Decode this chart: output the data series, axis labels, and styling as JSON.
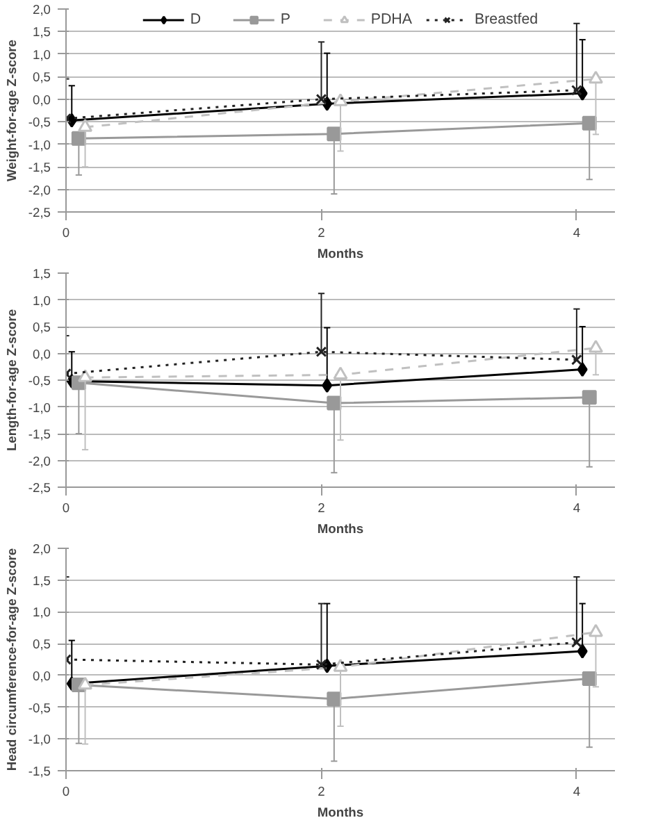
{
  "chart_data": [
    {
      "type": "line",
      "ylabel": "Weight-for-age Z-score",
      "xlabel": "Months",
      "xlim": [
        0,
        4.3
      ],
      "xticks": [
        0,
        2,
        4
      ],
      "ylim": [
        -2.5,
        2.0
      ],
      "yticks": [
        {
          "value": -2.5,
          "label": "-2,5"
        },
        {
          "value": -2.0,
          "label": "-2,0"
        },
        {
          "value": -1.5,
          "label": "-1,5"
        },
        {
          "value": -1.0,
          "label": "-1,0"
        },
        {
          "value": -0.5,
          "label": "-0,5"
        },
        {
          "value": 0,
          "label": "0,0"
        },
        {
          "value": 0.5,
          "label": "0,5"
        },
        {
          "value": 1.0,
          "label": "1,0"
        },
        {
          "value": 1.5,
          "label": "1,5"
        },
        {
          "value": 2.0,
          "label": "2,0"
        }
      ],
      "grid": "y",
      "legend": "top",
      "series": [
        {
          "name": "D",
          "color": "#000000",
          "marker": "diamond",
          "line_style": "solid",
          "x": [
            0.045,
            2.045,
            4.045
          ],
          "values": [
            -0.47,
            -0.1,
            0.13
          ],
          "errors": [
            [
              -0.47,
              0.3
            ],
            [
              -0.1,
              1.02
            ],
            [
              0.13,
              1.32
            ]
          ]
        },
        {
          "name": "P",
          "color": "#999999",
          "marker": "square",
          "line_style": "solid",
          "x": [
            0.1,
            2.1,
            4.1
          ],
          "values": [
            -0.87,
            -0.77,
            -0.53
          ],
          "errors": [
            [
              -1.68,
              -0.87
            ],
            [
              -2.1,
              -0.77
            ],
            [
              -1.78,
              -0.53
            ]
          ]
        },
        {
          "name": "PDHA",
          "color": "#c0c0c0",
          "marker": "triangle",
          "line_style": "dashed",
          "x": [
            0.15,
            2.15,
            4.15
          ],
          "values": [
            -0.62,
            -0.05,
            0.45
          ],
          "errors": [
            [
              -1.5,
              -0.62
            ],
            [
              -1.15,
              -0.05
            ],
            [
              -0.78,
              0.45
            ]
          ]
        },
        {
          "name": "Breastfed",
          "color": "#222222",
          "marker": "cross",
          "line_style": "dotted",
          "x": [
            0,
            2,
            4
          ],
          "values": [
            -0.43,
            0.0,
            0.2
          ],
          "errors": [
            [
              -0.43,
              0.45
            ],
            [
              0.0,
              1.27
            ],
            [
              0.2,
              1.68
            ]
          ]
        }
      ]
    },
    {
      "type": "line",
      "ylabel": "Length-for-age Z-score",
      "xlabel": "Months",
      "xlim": [
        0,
        4.3
      ],
      "xticks": [
        0,
        2,
        4
      ],
      "ylim": [
        -2.5,
        1.5
      ],
      "yticks": [
        {
          "value": -2.5,
          "label": "-2,5"
        },
        {
          "value": -2.0,
          "label": "-2,0"
        },
        {
          "value": -1.5,
          "label": "-1,5"
        },
        {
          "value": -1.0,
          "label": "-1,0"
        },
        {
          "value": -0.5,
          "label": "-0,5"
        },
        {
          "value": 0,
          "label": "0,0"
        },
        {
          "value": 0.5,
          "label": "0,5"
        },
        {
          "value": 1.0,
          "label": "1,0"
        },
        {
          "value": 1.5,
          "label": "1,5"
        }
      ],
      "grid": "y",
      "series": [
        {
          "color": "#000000",
          "marker": "diamond",
          "line_style": "solid",
          "x": [
            0.045,
            2.045,
            4.045
          ],
          "values": [
            -0.52,
            -0.6,
            -0.3
          ],
          "errors": [
            [
              -0.52,
              0.03
            ],
            [
              -0.6,
              0.48
            ],
            [
              -0.3,
              0.5
            ]
          ]
        },
        {
          "color": "#999999",
          "marker": "square",
          "line_style": "solid",
          "x": [
            0.1,
            2.1,
            4.1
          ],
          "values": [
            -0.55,
            -0.93,
            -0.82
          ],
          "errors": [
            [
              -1.5,
              -0.55
            ],
            [
              -2.23,
              -0.93
            ],
            [
              -2.12,
              -0.82
            ]
          ]
        },
        {
          "color": "#c0c0c0",
          "marker": "triangle",
          "line_style": "dashed",
          "x": [
            0.15,
            2.15,
            4.15
          ],
          "values": [
            -0.45,
            -0.4,
            0.1
          ],
          "errors": [
            [
              -1.8,
              -0.45
            ],
            [
              -1.62,
              -0.4
            ],
            [
              -0.4,
              0.1
            ]
          ]
        },
        {
          "color": "#222222",
          "marker": "cross",
          "line_style": "dotted",
          "x": [
            0,
            2,
            4
          ],
          "values": [
            -0.38,
            0.03,
            -0.12
          ],
          "errors": [
            [
              -0.38,
              0.33
            ],
            [
              0.03,
              1.12
            ],
            [
              -0.12,
              0.83
            ]
          ]
        }
      ]
    },
    {
      "type": "line",
      "ylabel": "Head circumference-for-age Z-score",
      "xlabel": "Months",
      "xlim": [
        0,
        4.3
      ],
      "xticks": [
        0,
        2,
        4
      ],
      "ylim": [
        -1.5,
        2.0
      ],
      "yticks": [
        {
          "value": -1.5,
          "label": "-1,5"
        },
        {
          "value": -1.0,
          "label": "-1,0"
        },
        {
          "value": -0.5,
          "label": "-0,5"
        },
        {
          "value": 0,
          "label": "0,0"
        },
        {
          "value": 0.5,
          "label": "0,5"
        },
        {
          "value": 1.0,
          "label": "1,0"
        },
        {
          "value": 1.5,
          "label": "1,5"
        },
        {
          "value": 2.0,
          "label": "2,0"
        }
      ],
      "grid": "y",
      "series": [
        {
          "color": "#000000",
          "marker": "diamond",
          "line_style": "solid",
          "x": [
            0.045,
            2.045,
            4.045
          ],
          "values": [
            -0.13,
            0.15,
            0.38
          ],
          "errors": [
            [
              -0.13,
              0.55
            ],
            [
              0.15,
              1.13
            ],
            [
              0.38,
              1.13
            ]
          ]
        },
        {
          "color": "#999999",
          "marker": "square",
          "line_style": "solid",
          "x": [
            0.1,
            2.1,
            4.1
          ],
          "values": [
            -0.15,
            -0.37,
            -0.05
          ],
          "errors": [
            [
              -1.07,
              -0.15
            ],
            [
              -1.35,
              -0.37
            ],
            [
              -1.13,
              -0.05
            ]
          ]
        },
        {
          "color": "#c0c0c0",
          "marker": "triangle",
          "line_style": "dashed",
          "x": [
            0.15,
            2.15,
            4.15
          ],
          "values": [
            -0.15,
            0.13,
            0.68
          ],
          "errors": [
            [
              -1.08,
              -0.15
            ],
            [
              -0.8,
              0.13
            ],
            [
              -0.18,
              0.68
            ]
          ]
        },
        {
          "color": "#222222",
          "marker": "cross",
          "line_style": "dotted",
          "x": [
            0,
            2,
            4
          ],
          "values": [
            0.25,
            0.17,
            0.52
          ],
          "errors": [
            [
              0.25,
              1.55
            ],
            [
              0.17,
              1.13
            ],
            [
              0.52,
              1.55
            ]
          ]
        }
      ]
    }
  ]
}
